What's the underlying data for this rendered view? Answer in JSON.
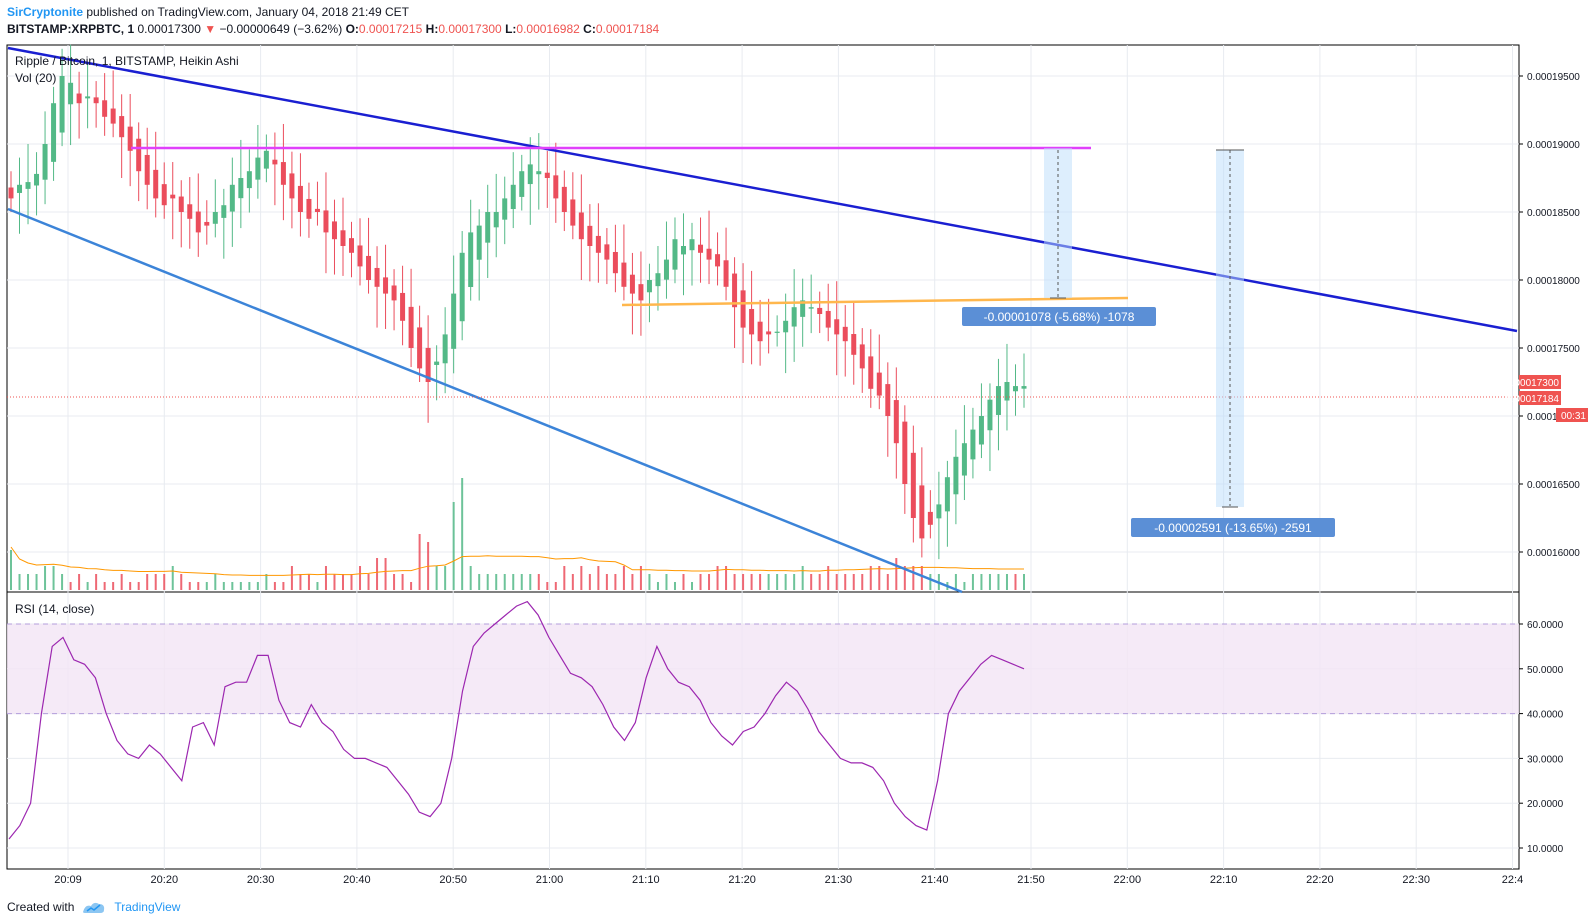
{
  "header": {
    "author": "SirCryptonite",
    "published_text": "published on TradingView.com, January 04, 2018 21:49 CET"
  },
  "quote": {
    "symbol": "BITSTAMP:XRPBTC, 1",
    "last": "0.00017300",
    "change_arrow": "▼",
    "change": "−0.00000649 (−3.62%)",
    "o_label": "O:",
    "o": "0.00017215",
    "h_label": "H:",
    "h": "0.00017300",
    "l_label": "L:",
    "l": "0.00016982",
    "c_label": "C:",
    "c": "0.00017184"
  },
  "chart_data": [
    {
      "type": "candlestick",
      "title": "Ripple / Bitcoin, 1, BITSTAMP, Heikin Ashi",
      "subtitle": "Vol (20)",
      "colors": {
        "up": "#53b987",
        "down": "#eb4d5c",
        "volume_ma": "#ff9800",
        "last_price_line": "#ef5350"
      },
      "x_tick_labels": [
        "20:09",
        "20:20",
        "20:30",
        "20:40",
        "20:50",
        "21:00",
        "21:10",
        "21:20",
        "21:30",
        "21:40",
        "21:50",
        "22:00",
        "22:10",
        "22:20",
        "22:30",
        "22:4"
      ],
      "y_tick_labels": [
        "0.00019500",
        "0.00019000",
        "0.00018500",
        "0.00018000",
        "0.00017500",
        "0.00017000",
        "0.00016500",
        "0.00016000"
      ],
      "ylim": [
        0.0001575,
        0.0001975
      ],
      "price_labels": {
        "last": "0.00017300",
        "close": "0.00017184",
        "countdown": "00:31"
      },
      "candles_close": [
        0.000186,
        0.000187,
        0.0001872,
        0.0001878,
        0.00019,
        0.000193,
        0.000195,
        0.0001945,
        0.000193,
        0.0001935,
        0.000193,
        0.000192,
        0.0001915,
        0.0001905,
        0.0001895,
        0.000188,
        0.000187,
        0.000186,
        0.0001855,
        0.000186,
        0.000185,
        0.0001845,
        0.0001835,
        0.000184,
        0.000185,
        0.0001855,
        0.000187,
        0.0001875,
        0.000188,
        0.000189,
        0.0001895,
        0.0001885,
        0.000187,
        0.000186,
        0.000185,
        0.0001845,
        0.000185,
        0.0001835,
        0.000183,
        0.0001825,
        0.000182,
        0.000181,
        0.00018,
        0.0001795,
        0.000179,
        0.0001785,
        0.000177,
        0.000175,
        0.0001735,
        0.0001725,
        0.000174,
        0.000176,
        0.000179,
        0.000182,
        0.0001835,
        0.000184,
        0.000185,
        0.000185,
        0.000186,
        0.000187,
        0.000188,
        0.0001885,
        0.000188,
        0.0001875,
        0.000186,
        0.000185,
        0.000184,
        0.000183,
        0.0001825,
        0.000182,
        0.0001815,
        0.0001805,
        0.0001795,
        0.000179,
        0.0001785,
        0.00018,
        0.0001805,
        0.0001815,
        0.000183,
        0.0001825,
        0.000183,
        0.000182,
        0.0001815,
        0.000181,
        0.0001795,
        0.000178,
        0.0001765,
        0.000176,
        0.0001755,
        0.000176,
        0.0001762,
        0.000177,
        0.000178,
        0.0001785,
        0.000178,
        0.0001775,
        0.0001765,
        0.000176,
        0.0001755,
        0.0001745,
        0.0001735,
        0.000172,
        0.0001715,
        0.00017,
        0.000168,
        0.000165,
        0.0001625,
        0.000161,
        0.000162,
        0.0001635,
        0.0001655,
        0.000167,
        0.000168,
        0.000169,
        0.00017,
        0.0001712,
        0.0001722,
        0.0001725,
        0.0001722,
        0.0001722
      ],
      "volume": [
        5,
        2,
        2,
        2,
        3,
        3,
        2,
        1,
        2,
        1,
        2,
        1,
        1,
        2,
        1,
        1,
        2,
        2,
        2,
        3,
        2,
        1,
        1,
        1,
        2,
        1,
        1,
        1,
        1,
        1,
        2,
        1,
        1,
        3,
        2,
        2,
        1,
        3,
        2,
        2,
        2,
        3,
        2,
        4,
        4,
        2,
        2,
        1,
        7,
        6,
        3,
        3,
        11,
        14,
        3,
        2,
        2,
        2,
        2,
        2,
        2,
        2,
        2,
        1,
        1,
        3,
        2,
        3,
        2,
        3,
        2,
        2,
        3,
        2,
        3,
        2,
        1,
        2,
        1,
        2,
        1,
        2,
        2,
        3,
        3,
        2,
        2,
        2,
        2,
        2,
        2,
        2,
        2,
        3,
        2,
        2,
        3,
        2,
        2,
        2,
        2,
        3,
        3,
        2,
        4,
        3,
        3,
        3,
        2,
        2,
        1,
        2,
        1,
        2,
        2,
        2,
        2,
        2,
        2,
        2
      ]
    },
    {
      "type": "line",
      "title": "RSI (14, close)",
      "color": "#9c27b0",
      "band": [
        40,
        60
      ],
      "y_tick_labels": [
        "60.0000",
        "50.0000",
        "40.0000",
        "30.0000",
        "20.0000",
        "10.0000"
      ],
      "ylim": [
        10,
        65
      ],
      "values": [
        12,
        15,
        20,
        40,
        55,
        57,
        52,
        51,
        48,
        40,
        34,
        31,
        30,
        33,
        31,
        28,
        25,
        37,
        38,
        33,
        46,
        47,
        47,
        53,
        53,
        43,
        38,
        37,
        42,
        38,
        36,
        32,
        30,
        30,
        29,
        28,
        25,
        22,
        18,
        17,
        20,
        30,
        45,
        55,
        58,
        60,
        62,
        64,
        65,
        62,
        57,
        53,
        49,
        48,
        46,
        42,
        37,
        34,
        38,
        48,
        55,
        50,
        47,
        46,
        43,
        38,
        35,
        33,
        36,
        37,
        40,
        44,
        47,
        45,
        41,
        36,
        33,
        30,
        29,
        29,
        28,
        25,
        20,
        17,
        15,
        14,
        25,
        40,
        45,
        48,
        51,
        53,
        52,
        51,
        50
      ]
    }
  ],
  "annotations": {
    "measure_1": "-0.00001078 (-5.68%) -1078",
    "measure_2": "-0.00002591 (-13.65%) -2591"
  },
  "footer": {
    "created_with": "Created with",
    "brand": "TradingView"
  }
}
